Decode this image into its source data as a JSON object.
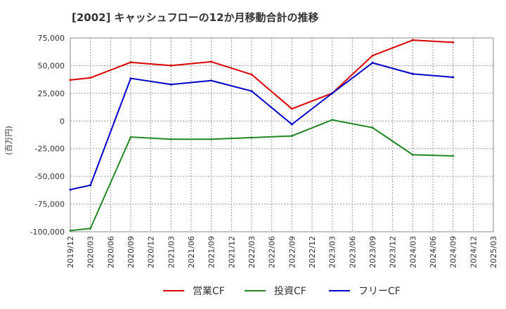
{
  "chart_data": {
    "type": "line",
    "title": "[2002]  キャッシュフローの12か月移動合計の推移",
    "ylabel": "(百万円)",
    "xlabel": "",
    "ylim": [
      -100000,
      75000
    ],
    "y_ticks": [
      75000,
      50000,
      25000,
      0,
      -25000,
      -50000,
      -75000,
      -100000
    ],
    "y_tick_labels": [
      "75,000",
      "50,000",
      "25,000",
      "0",
      "-25,000",
      "-50,000",
      "-75,000",
      "-100,000"
    ],
    "x_ticks": [
      "2019/12",
      "2020/03",
      "2020/06",
      "2020/09",
      "2020/12",
      "2021/03",
      "2021/06",
      "2021/09",
      "2021/12",
      "2022/03",
      "2022/06",
      "2022/09",
      "2022/12",
      "2023/03",
      "2023/06",
      "2023/09",
      "2023/12",
      "2024/03",
      "2024/06",
      "2024/09",
      "2024/12",
      "2025/03"
    ],
    "grid": true,
    "legend_position": "bottom",
    "series": [
      {
        "name": "営業CF",
        "color": "#dd0000",
        "x": [
          "2019/12",
          "2020/03",
          "2020/09",
          "2021/03",
          "2021/09",
          "2022/03",
          "2022/09",
          "2023/03",
          "2023/09",
          "2024/03",
          "2024/09"
        ],
        "values": [
          37000,
          39000,
          53000,
          50000,
          53500,
          42000,
          11000,
          25000,
          59000,
          73000,
          71000
        ]
      },
      {
        "name": "投資CF",
        "color": "#228822",
        "x": [
          "2019/12",
          "2020/03",
          "2020/09",
          "2021/03",
          "2021/09",
          "2022/03",
          "2022/09",
          "2023/03",
          "2023/09",
          "2024/03",
          "2024/09"
        ],
        "values": [
          -99000,
          -97000,
          -14500,
          -16500,
          -16500,
          -15000,
          -13500,
          1000,
          -6000,
          -30500,
          -31500
        ]
      },
      {
        "name": "フリーCF",
        "color": "#0000cc",
        "x": [
          "2019/12",
          "2020/03",
          "2020/09",
          "2021/03",
          "2021/09",
          "2022/03",
          "2022/09",
          "2023/03",
          "2023/09",
          "2024/03",
          "2024/09"
        ],
        "values": [
          -62000,
          -58000,
          38500,
          33000,
          36500,
          27000,
          -3000,
          25000,
          52500,
          42500,
          39500
        ]
      }
    ]
  }
}
